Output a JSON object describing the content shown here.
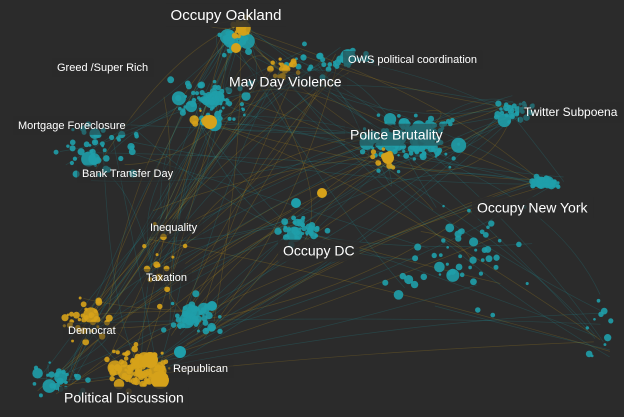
{
  "labels": [
    "Occupy Oakland",
    "Greed /Super Rich",
    "OWS political coordination",
    "May Day Violence",
    "Mortgage Foreclosure",
    "Twitter Subpoena",
    "Police Brutality",
    "Bank Transfer Day",
    "Occupy New York",
    "Inequality",
    "Occupy DC",
    "Taxation",
    "Democrat",
    "Republican",
    "Political Discussion"
  ]
}
